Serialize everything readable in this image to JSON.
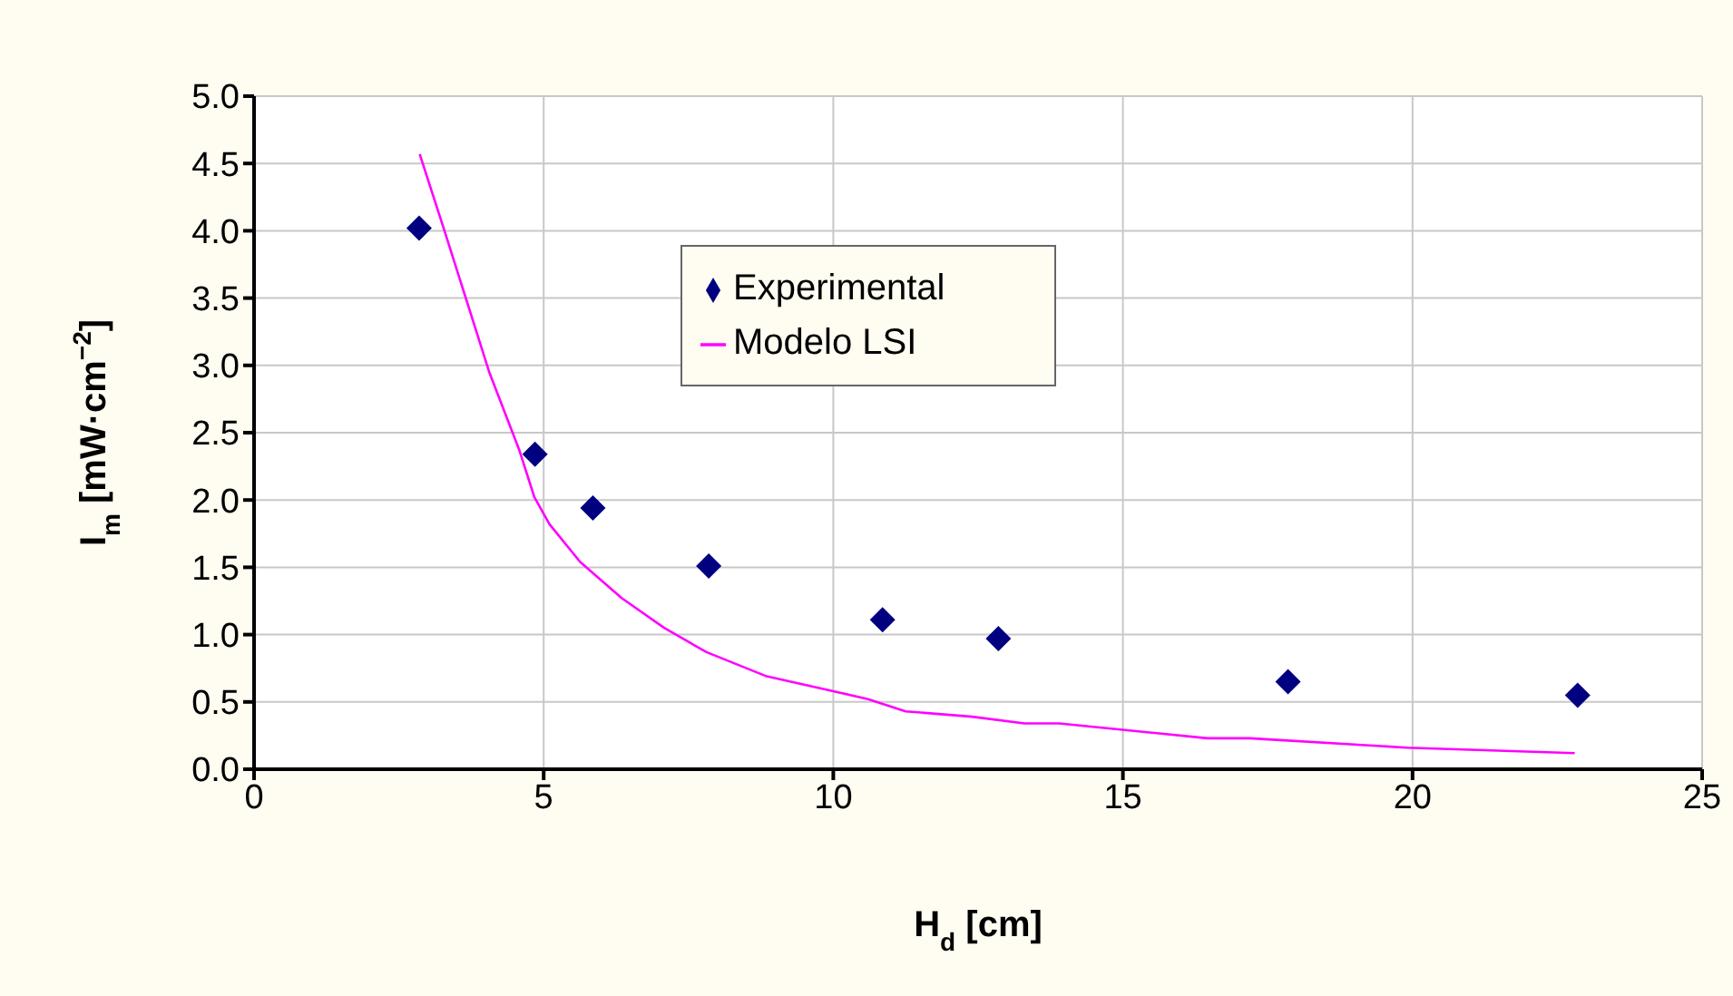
{
  "chart_data": {
    "type": "scatter",
    "xlabel": "H$_{d}$ [cm]",
    "ylabel": "I$_{m}$ [mW·cm$^{−2}$]",
    "xlim": [
      0,
      25
    ],
    "xticks": [
      0,
      5,
      10,
      15,
      20,
      25
    ],
    "ylim": [
      0,
      5
    ],
    "yticks": [
      {
        "value": 0,
        "label": "0.0"
      },
      {
        "value": 0.5,
        "label": "0.5"
      },
      {
        "value": 1,
        "label": "1.0"
      },
      {
        "value": 1.5,
        "label": "1.5"
      },
      {
        "value": 2,
        "label": "2.0"
      },
      {
        "value": 2.5,
        "label": "2.5"
      },
      {
        "value": 3,
        "label": "3.0"
      },
      {
        "value": 3.5,
        "label": "3.5"
      },
      {
        "value": 4,
        "label": "4.0"
      },
      {
        "value": 4.5,
        "label": "4.5"
      },
      {
        "value": 5,
        "label": "5.0"
      }
    ],
    "grid": true,
    "legend": "top",
    "series": [
      {
        "name": "Experimental",
        "marker": "diamond",
        "color": "#000080",
        "x": [
          2.85,
          4.85,
          5.85,
          7.85,
          10.85,
          12.85,
          17.85,
          22.85
        ],
        "values": [
          4.02,
          2.34,
          1.94,
          1.51,
          1.11,
          0.97,
          0.65,
          0.55
        ]
      },
      {
        "name": "Modelo LSI",
        "type": "line",
        "marker": "none",
        "color": "#ff00ff",
        "x": [
          2.86,
          3.31,
          4.06,
          4.58,
          4.84,
          5.1,
          5.63,
          6.35,
          7.08,
          7.81,
          8.85,
          10,
          10.6,
          11.25,
          12.4,
          13.3,
          13.9,
          16.46,
          17.19,
          19.9,
          22.8
        ],
        "values": [
          4.57,
          3.97,
          2.95,
          2.37,
          2.02,
          1.82,
          1.54,
          1.27,
          1.05,
          0.87,
          0.69,
          0.58,
          0.52,
          0.43,
          0.39,
          0.34,
          0.34,
          0.23,
          0.23,
          0.16,
          0.12
        ]
      }
    ]
  }
}
